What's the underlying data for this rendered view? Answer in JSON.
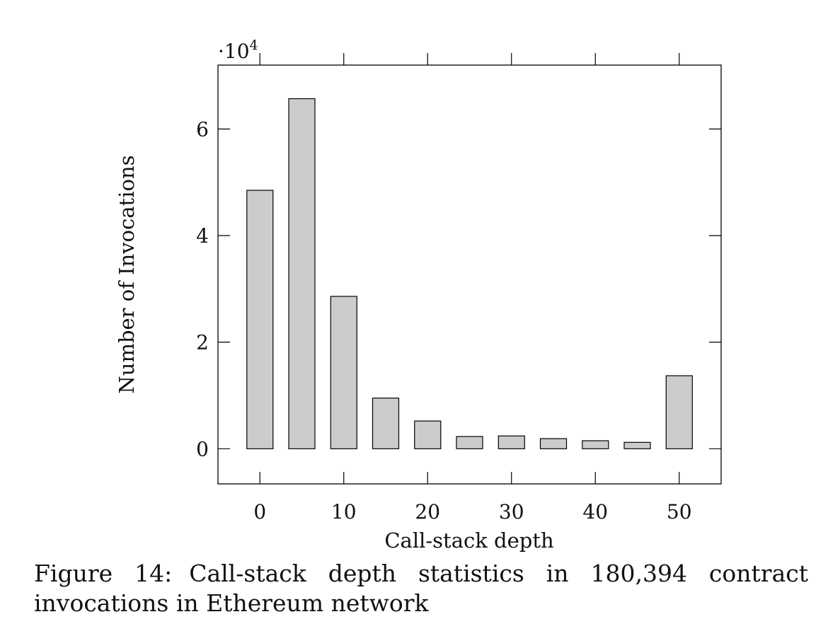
{
  "chart_data": {
    "type": "bar",
    "x": [
      0,
      5,
      10,
      15,
      20,
      25,
      30,
      35,
      40,
      45,
      50
    ],
    "values": [
      48500,
      65700,
      28600,
      9500,
      5200,
      2300,
      2400,
      1900,
      1500,
      1200,
      13700
    ],
    "xlabel": "Call-stack depth",
    "ylabel": "Number of Invocations",
    "y_multiplier_label": "·10",
    "y_multiplier_exponent": "4",
    "y_scale": 10000,
    "xlim": [
      -5,
      55
    ],
    "ylim": [
      -0.66,
      7.2
    ],
    "x_ticks": [
      0,
      10,
      20,
      30,
      40,
      50
    ],
    "y_ticks": [
      0,
      2,
      4,
      6
    ],
    "x_tick_labels": [
      "0",
      "10",
      "20",
      "30",
      "40",
      "50"
    ],
    "y_tick_labels": [
      "0",
      "2",
      "4",
      "6"
    ],
    "grid": false,
    "bar_fill": "#cccccc",
    "bar_stroke": "#000000"
  },
  "caption": {
    "label": "Figure 14:",
    "text": "Call-stack depth statistics in 180,394 contract invocations in Ethereum network"
  }
}
